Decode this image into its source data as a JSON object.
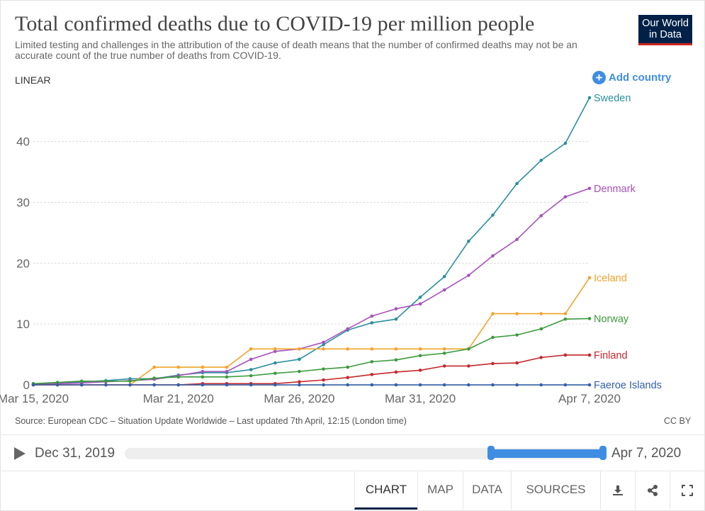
{
  "header": {
    "title": "Total confirmed deaths due to COVID-19 per million people",
    "subtitle": "Limited testing and challenges in the attribution of the cause of death means that the number of confirmed deaths may not be an accurate count of the true number of deaths from COVID-19.",
    "logo_line1": "Our World",
    "logo_line2": "in Data"
  },
  "controls": {
    "scale_label": "LINEAR",
    "add_country_label": "Add country"
  },
  "footer": {
    "source": "Source: European CDC – Situation Update Worldwide – Last updated 7th April, 12:15 (London time)",
    "license": "CC BY"
  },
  "timeline": {
    "start_label": "Dec 31, 2019",
    "end_label": "Apr 7, 2020"
  },
  "tabs": [
    {
      "label": "CHART"
    },
    {
      "label": "MAP"
    },
    {
      "label": "DATA"
    },
    {
      "label": "SOURCES"
    }
  ],
  "icons": [
    "play-icon",
    "download-icon",
    "share-icon",
    "fullscreen-icon",
    "plus-icon"
  ],
  "colors": {
    "accent": "#3e8de3",
    "brand_navy": "#002147",
    "brand_red": "#ce261e"
  },
  "chart_data": {
    "type": "line",
    "title": "Total confirmed deaths due to COVID-19 per million people",
    "x_start_day": 0,
    "x_end_day": 23,
    "xticks": [
      {
        "day": 0,
        "label": "Mar 15, 2020"
      },
      {
        "day": 6,
        "label": "Mar 21, 2020"
      },
      {
        "day": 11,
        "label": "Mar 26, 2020"
      },
      {
        "day": 16,
        "label": "Mar 31, 2020"
      },
      {
        "day": 23,
        "label": "Apr 7, 2020"
      }
    ],
    "ylim": [
      0,
      48
    ],
    "yticks": [
      0,
      10,
      20,
      30,
      40
    ],
    "grid": true,
    "series": [
      {
        "name": "Sweden",
        "color": "#2a8f9e",
        "values": [
          0.1,
          0.2,
          0.5,
          0.7,
          1.0,
          1.0,
          1.6,
          2.0,
          2.0,
          2.5,
          3.6,
          4.2,
          6.6,
          9.0,
          10.2,
          10.8,
          14.4,
          17.8,
          23.6,
          27.9,
          33.1,
          36.9,
          39.7,
          47.2
        ]
      },
      {
        "name": "Denmark",
        "color": "#a652ba",
        "values": [
          0.0,
          0.2,
          0.3,
          0.5,
          0.7,
          0.9,
          1.5,
          2.2,
          2.2,
          4.2,
          5.5,
          5.9,
          7.0,
          9.2,
          11.3,
          12.5,
          13.3,
          15.6,
          18.0,
          21.2,
          23.9,
          27.8,
          30.9,
          32.3
        ]
      },
      {
        "name": "Iceland",
        "color": "#f2a32b",
        "values": [
          0.0,
          0.0,
          0.0,
          0.0,
          0.0,
          2.9,
          2.9,
          2.9,
          2.9,
          5.9,
          5.9,
          5.9,
          5.9,
          5.9,
          5.9,
          5.9,
          5.9,
          5.9,
          5.9,
          11.7,
          11.7,
          11.7,
          11.7,
          17.6
        ]
      },
      {
        "name": "Norway",
        "color": "#3d9a3d",
        "values": [
          0.2,
          0.4,
          0.6,
          0.6,
          0.6,
          1.1,
          1.3,
          1.3,
          1.3,
          1.5,
          1.9,
          2.2,
          2.6,
          2.9,
          3.8,
          4.1,
          4.8,
          5.2,
          5.9,
          7.8,
          8.2,
          9.2,
          10.8,
          10.9
        ]
      },
      {
        "name": "Finland",
        "color": "#c4282d",
        "values": [
          0.0,
          0.0,
          0.0,
          0.0,
          0.0,
          0.0,
          0.0,
          0.2,
          0.2,
          0.2,
          0.2,
          0.5,
          0.8,
          1.2,
          1.7,
          2.1,
          2.4,
          3.1,
          3.1,
          3.5,
          3.6,
          4.5,
          4.9,
          4.9
        ]
      },
      {
        "name": "Faeroe Islands",
        "color": "#3360a9",
        "values": [
          0,
          0,
          0,
          0,
          0,
          0,
          0,
          0,
          0,
          0,
          0,
          0,
          0,
          0,
          0,
          0,
          0,
          0,
          0,
          0,
          0,
          0,
          0,
          0
        ]
      }
    ]
  }
}
